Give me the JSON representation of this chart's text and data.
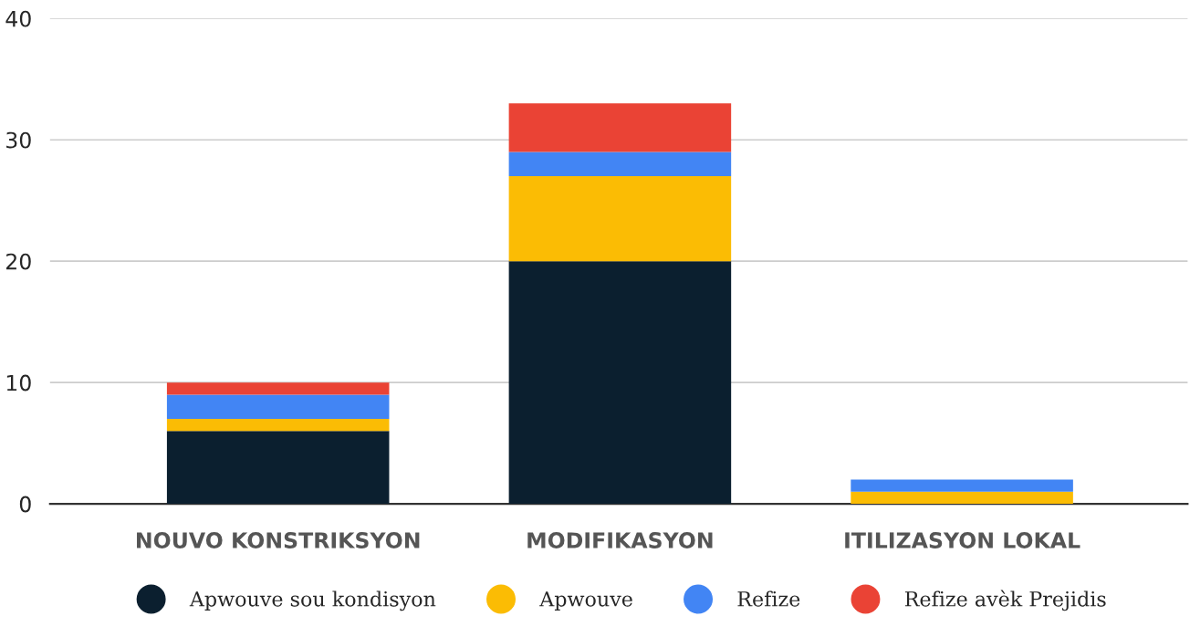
{
  "chart_data": {
    "type": "bar",
    "stacked": true,
    "categories": [
      "NOUVO KONSTRIKSYON",
      "MODIFIKASYON",
      "ITILIZASYON LOKAL"
    ],
    "series": [
      {
        "name": "Apwouve sou kondisyon",
        "color": "#0b1f2f",
        "values": [
          6,
          20,
          0
        ]
      },
      {
        "name": "Apwouve",
        "color": "#fbbc04",
        "values": [
          1,
          7,
          1
        ]
      },
      {
        "name": "Refize",
        "color": "#4285f4",
        "values": [
          2,
          2,
          1
        ]
      },
      {
        "name": "Refize avèk Prejidis",
        "color": "#ea4335",
        "values": [
          1,
          4,
          0
        ]
      }
    ],
    "ylim": [
      0,
      40
    ],
    "yticks": [
      0,
      10,
      20,
      30,
      40
    ],
    "grid": "y",
    "legend": "bottom",
    "marker": "circle"
  }
}
